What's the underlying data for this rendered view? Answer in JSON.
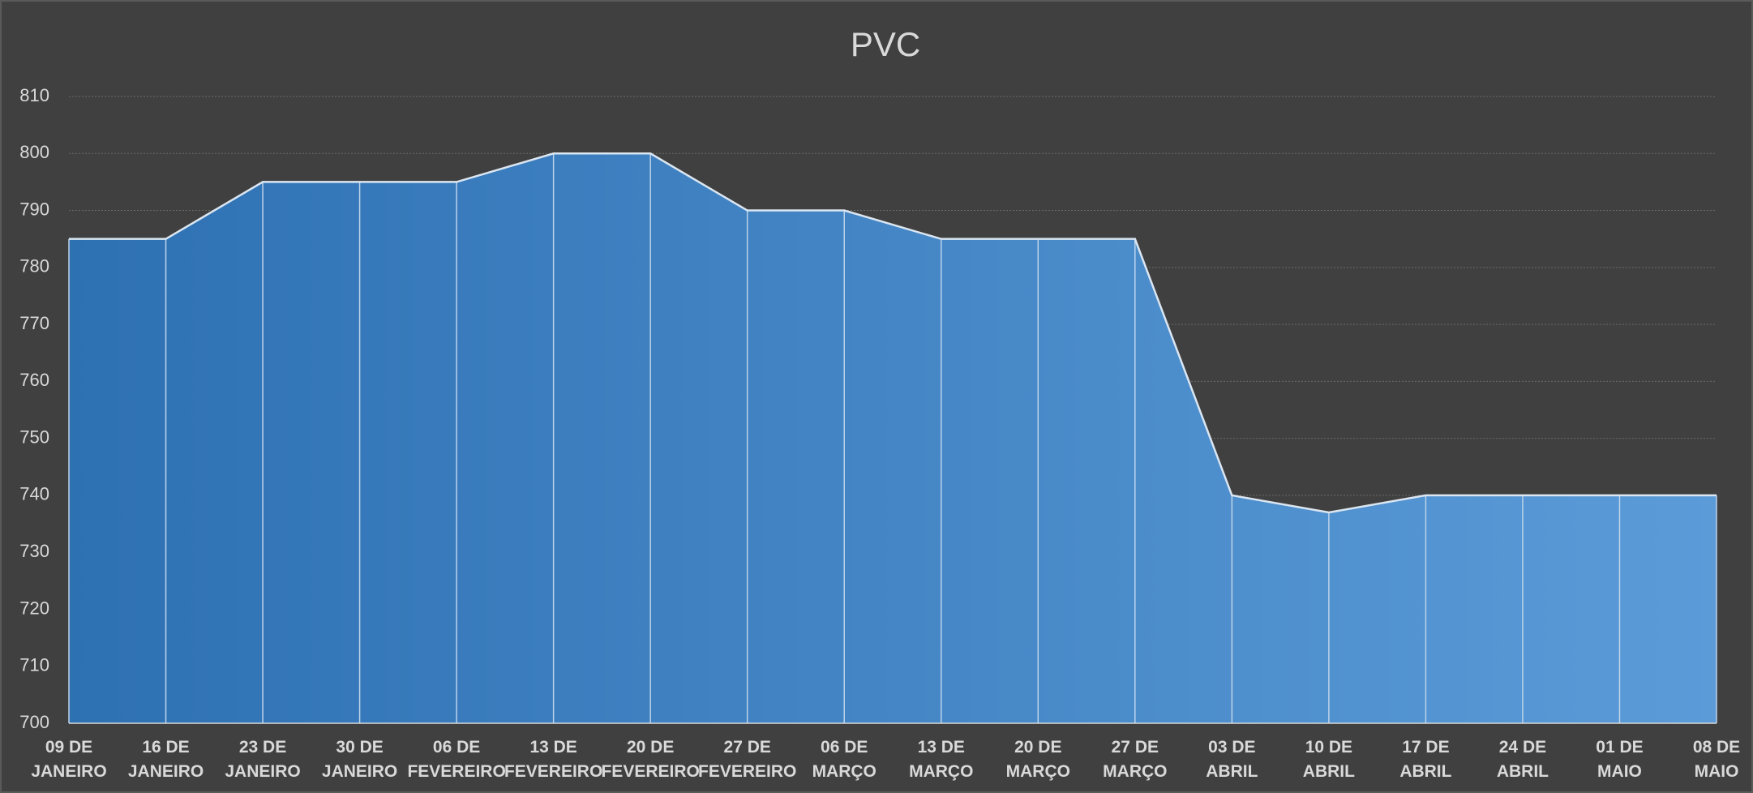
{
  "chart_data": {
    "type": "area",
    "title": "PVC",
    "categories": [
      "09 DE JANEIRO",
      "16 DE JANEIRO",
      "23 DE JANEIRO",
      "30 DE JANEIRO",
      "06 DE FEVEREIRO",
      "13 DE FEVEREIRO",
      "20 DE FEVEREIRO",
      "27 DE FEVEREIRO",
      "06 DE MARÇO",
      "13 DE MARÇO",
      "20 DE MARÇO",
      "27 DE MARÇO",
      "03 DE ABRIL",
      "10 DE ABRIL",
      "17 DE ABRIL",
      "24 DE ABRIL",
      "01 DE MAIO",
      "08 DE MAIO"
    ],
    "values": [
      785,
      785,
      795,
      795,
      795,
      800,
      800,
      790,
      790,
      785,
      785,
      785,
      740,
      737,
      740,
      740,
      740,
      740
    ],
    "color": "#4a8bce",
    "ylim": [
      700,
      810
    ],
    "yticks": [
      700,
      710,
      720,
      730,
      740,
      750,
      760,
      770,
      780,
      790,
      800,
      810
    ],
    "grid": true
  }
}
